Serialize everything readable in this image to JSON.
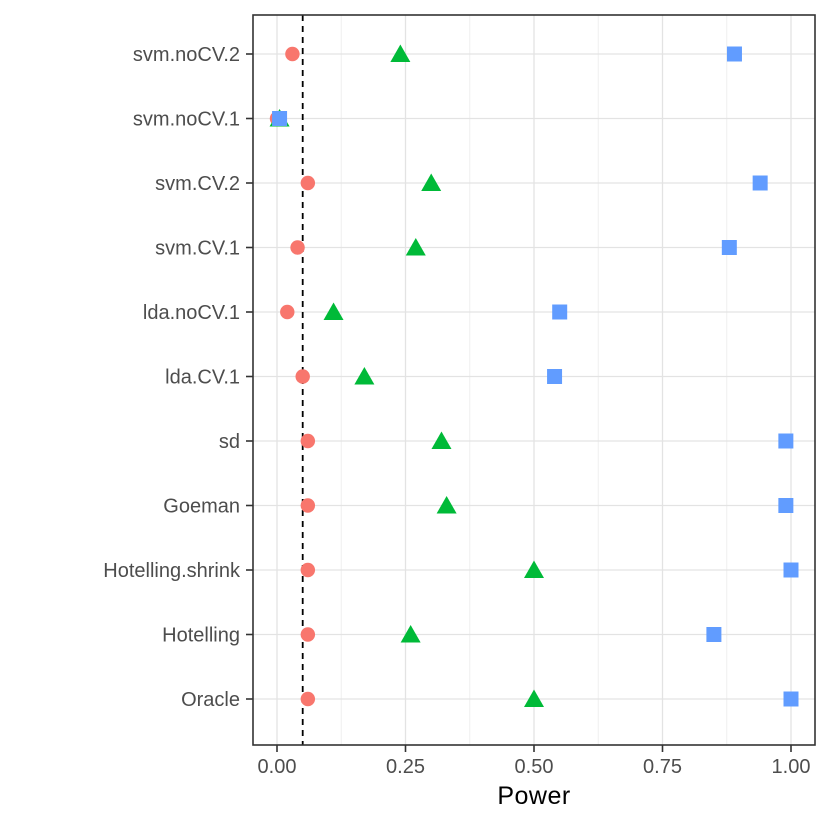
{
  "chart_data": {
    "type": "scatter",
    "subtype": "horizontal-dot-plot",
    "title": "",
    "xlabel": "Power",
    "ylabel": "",
    "xlim": [
      -0.047,
      1.047
    ],
    "x_tick_values": [
      0,
      0.25,
      0.5,
      0.75,
      1.0
    ],
    "x_tick_labels": [
      "0.00",
      "0.25",
      "0.50",
      "0.75",
      "1.00"
    ],
    "grid": true,
    "legend_position": "none",
    "categories": [
      "svm.noCV.2",
      "svm.noCV.1",
      "svm.CV.2",
      "svm.CV.1",
      "lda.noCV.1",
      "lda.CV.1",
      "sd",
      "Goeman",
      "Hotelling.shrink",
      "Hotelling",
      "Oracle"
    ],
    "reference_line": {
      "value": 0.05,
      "style": "dashed",
      "color": "#000000"
    },
    "series": [
      {
        "name": "circle-series",
        "marker": "circle",
        "color": "#F8766D",
        "values": [
          0.03,
          0.0,
          0.06,
          0.04,
          0.02,
          0.05,
          0.06,
          0.06,
          0.06,
          0.06,
          0.06
        ]
      },
      {
        "name": "triangle-series",
        "marker": "triangle",
        "color": "#00BA38",
        "values": [
          0.24,
          0.005,
          0.3,
          0.27,
          0.11,
          0.17,
          0.32,
          0.33,
          0.5,
          0.26,
          0.5
        ]
      },
      {
        "name": "square-series",
        "marker": "square",
        "color": "#619CFF",
        "values": [
          0.89,
          0.005,
          0.94,
          0.88,
          0.55,
          0.54,
          0.99,
          0.99,
          1.0,
          0.85,
          1.0
        ]
      }
    ]
  },
  "style_colors": {
    "panel_border": "#333333",
    "grid_major": "#e3e3e3",
    "grid_minor": "#efefef",
    "tick_label": "#4d4d4d",
    "axis_title": "#000000",
    "tick_mark": "#333333"
  }
}
